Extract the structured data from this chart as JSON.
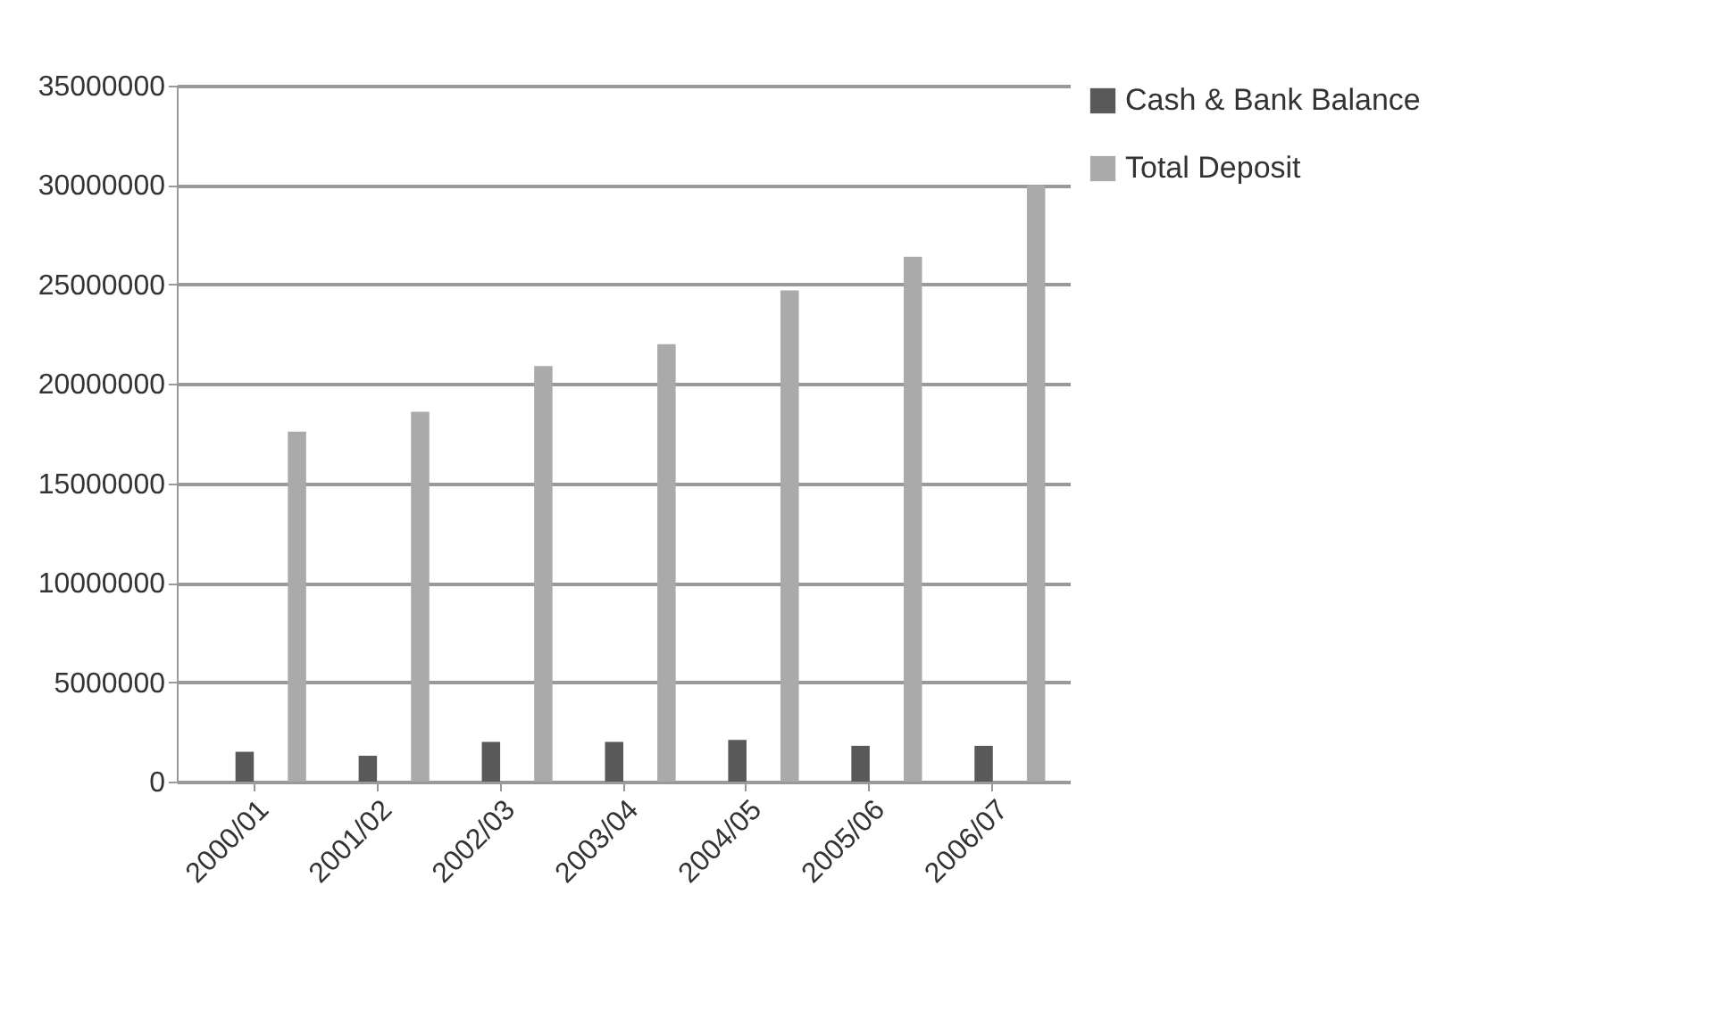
{
  "chart_data": {
    "type": "bar",
    "categories": [
      "2000/01",
      "2001/02",
      "2002/03",
      "2003/04",
      "2004/05",
      "2005/06",
      "2006/07"
    ],
    "series": [
      {
        "name": "Cash & Bank Balance",
        "color": "#595959",
        "values": [
          1500000,
          1300000,
          2000000,
          2000000,
          2100000,
          1800000,
          1800000
        ]
      },
      {
        "name": "Total Deposit",
        "color": "#aaaaaa",
        "values": [
          17600000,
          18600000,
          20900000,
          22000000,
          24700000,
          26400000,
          30000000
        ]
      }
    ],
    "ylim": [
      0,
      35000000
    ],
    "yticks": [
      0,
      5000000,
      10000000,
      15000000,
      20000000,
      25000000,
      30000000,
      35000000
    ],
    "grid": "y",
    "legend": "right"
  }
}
